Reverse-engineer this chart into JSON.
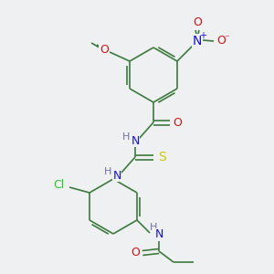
{
  "bg_color": "#eef0f2",
  "bond_color": "#3d7a3d",
  "atom_colors": {
    "N": "#1414cc",
    "O": "#cc1414",
    "S": "#cccc00",
    "Cl": "#22cc22",
    "H": "#7070aa",
    "C": "#3d7a3d"
  },
  "font_size": 8,
  "line_width": 1.2,
  "figsize": [
    3.0,
    3.0
  ],
  "dpi": 100
}
